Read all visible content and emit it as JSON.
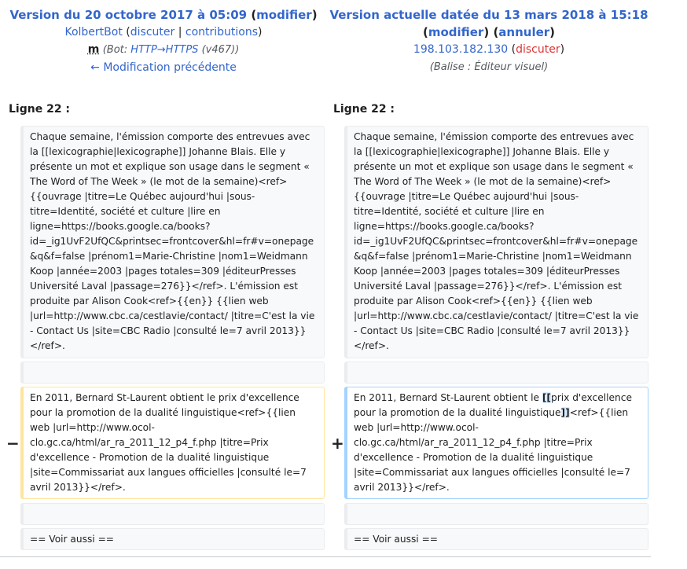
{
  "left_header": {
    "title": "Version du 20 octobre 2017 à 05:09",
    "edit_label": "modifier",
    "user": "KolbertBot",
    "talk": "discuter",
    "contribs": "contributions",
    "minor": "m",
    "summary_prefix": "(Bot: ",
    "summary_link": "HTTP→HTTPS",
    "summary_suffix": " (v467))",
    "prev_link": "← Modification précédente"
  },
  "right_header": {
    "title": "Version actuelle datée du 13 mars 2018 à 15:18",
    "edit_label": "modifier",
    "undo_label": "annuler",
    "ip": "198.103.182.130",
    "talk": "discuter",
    "tag": "(Balise : Éditeur visuel)"
  },
  "line_label": "Ligne 22 :",
  "context_text": "Chaque semaine, l'émission comporte des entrevues avec la [[lexicographie|lexicographe]] Johanne Blais. Elle y présente un mot et explique son usage dans le segment « The Word of The Week » (le mot de la semaine)<ref>{{ouvrage |titre=Le Québec aujourd'hui |sous-titre=Identité, société et culture |lire en ligne=https://books.google.ca/books?id=_ig1UvF2UfQC&printsec=frontcover&hl=fr#v=onepage&q&f=false |prénom1=Marie-Christine |nom1=Weidmann Koop |année=2003 |pages totales=309 |éditeurPresses Université Laval |passage=276}}</ref>. L'émission est produite par Alison Cook<ref>{{en}} {{lien web |url=http://www.cbc.ca/cestlavie/contact/ |titre=C'est la vie - Contact Us |site=CBC Radio |consulté le=7 avril 2013}}</ref>.",
  "deleted_text": "En 2011, Bernard St-Laurent obtient le prix d'excellence pour la promotion de la dualité linguistique<ref>{{lien web |url=http://www.ocol-clo.gc.ca/html/ar_ra_2011_12_p4_f.php |titre=Prix d'excellence - Promotion de la dualité linguistique |site=Commissariat aux langues officielles |consulté le=7 avril 2013}}</ref>.",
  "added_text": {
    "part1": "En 2011, Bernard St-Laurent obtient le ",
    "ins1": "[[",
    "part2": "prix d'excellence pour la promotion de la dualité linguistique",
    "ins2": "]]",
    "part3": "<ref>{{lien web |url=http://www.ocol-clo.gc.ca/html/ar_ra_2011_12_p4_f.php |titre=Prix d'excellence - Promotion de la dualité linguistique |site=Commissariat aux langues officielles |consulté le=7 avril 2013}}</ref>."
  },
  "minus_marker": "−",
  "plus_marker": "+",
  "see_also": "== Voir aussi =="
}
